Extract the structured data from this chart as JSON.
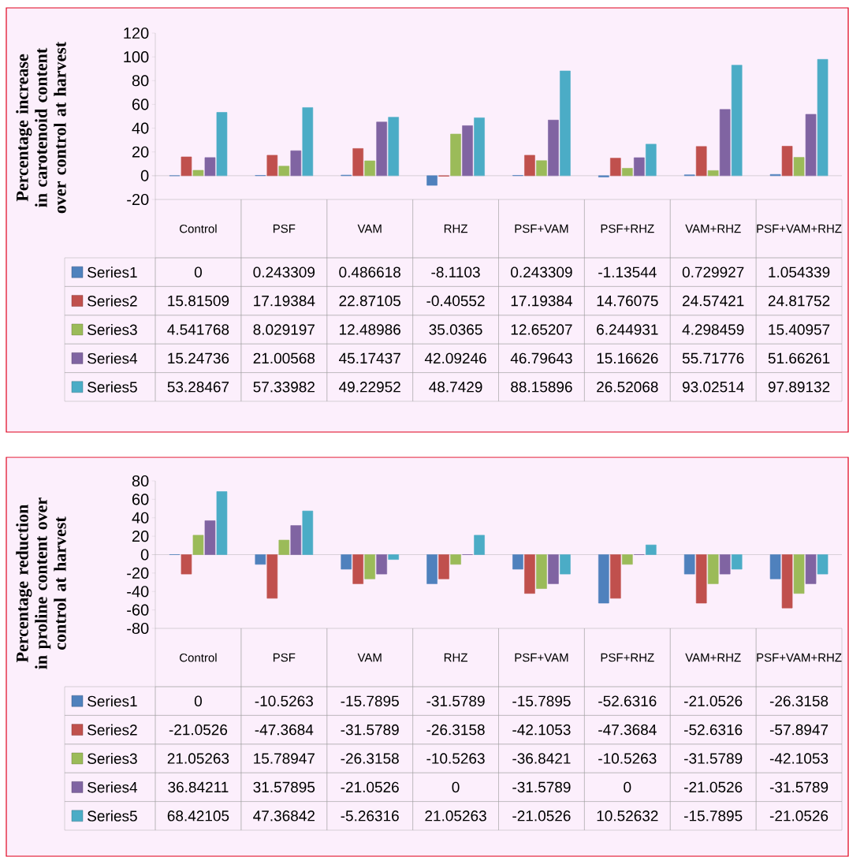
{
  "chart_data": [
    {
      "type": "bar",
      "ylabel": "Percentage increase in carotenoid content over control at harvest",
      "categories": [
        "Control",
        "PSF",
        "VAM",
        "RHZ",
        "PSF+VAM",
        "PSF+RHZ",
        "VAM+RHZ",
        "PSF+VAM+RHZ"
      ],
      "series": [
        {
          "name": "Series1",
          "color": "#4f81bd",
          "values": [
            0,
            0.243309,
            0.486618,
            -8.1103,
            0.243309,
            -1.13544,
            0.729927,
            1.054339
          ]
        },
        {
          "name": "Series2",
          "color": "#c0504d",
          "values": [
            15.81509,
            17.19384,
            22.87105,
            -0.40552,
            17.19384,
            14.76075,
            24.57421,
            24.81752
          ]
        },
        {
          "name": "Series3",
          "color": "#9bbb59",
          "values": [
            4.541768,
            8.029197,
            12.48986,
            35.0365,
            12.65207,
            6.244931,
            4.298459,
            15.40957
          ]
        },
        {
          "name": "Series4",
          "color": "#8064a2",
          "values": [
            15.24736,
            21.00568,
            45.17437,
            42.09246,
            46.79643,
            15.16626,
            55.71776,
            51.66261
          ]
        },
        {
          "name": "Series5",
          "color": "#4bacc6",
          "values": [
            53.28467,
            57.33982,
            49.22952,
            48.7429,
            88.15896,
            26.52068,
            93.02514,
            97.89132
          ]
        }
      ],
      "ylim": [
        -20,
        120
      ],
      "yticks": [
        -20,
        0,
        20,
        40,
        60,
        80,
        100,
        120
      ],
      "data_labels": true,
      "legend": "bottom left"
    },
    {
      "type": "bar",
      "ylabel": "Percentage reduction in proline content over control at harvest",
      "categories": [
        "Control",
        "PSF",
        "VAM",
        "RHZ",
        "PSF+VAM",
        "PSF+RHZ",
        "VAM+RHZ",
        "PSF+VAM+RHZ"
      ],
      "series": [
        {
          "name": "Series1",
          "color": "#4f81bd",
          "values": [
            0,
            -10.5263,
            -15.7895,
            -31.5789,
            -15.7895,
            -52.6316,
            -21.0526,
            -26.3158
          ]
        },
        {
          "name": "Series2",
          "color": "#c0504d",
          "values": [
            -21.0526,
            -47.3684,
            -31.5789,
            -26.3158,
            -42.1053,
            -47.3684,
            -52.6316,
            -57.8947
          ]
        },
        {
          "name": "Series3",
          "color": "#9bbb59",
          "values": [
            21.05263,
            15.78947,
            -26.3158,
            -10.5263,
            -36.8421,
            -10.5263,
            -31.5789,
            -42.1053
          ]
        },
        {
          "name": "Series4",
          "color": "#8064a2",
          "values": [
            36.84211,
            31.57895,
            -21.0526,
            0,
            -31.5789,
            0,
            -21.0526,
            -31.5789
          ]
        },
        {
          "name": "Series5",
          "color": "#4bacc6",
          "values": [
            68.42105,
            47.36842,
            -5.26316,
            21.05263,
            -21.0526,
            10.52632,
            -15.7895,
            -21.0526
          ]
        }
      ],
      "ylim": [
        -80,
        80
      ],
      "yticks": [
        -80,
        -60,
        -40,
        -20,
        0,
        20,
        40,
        60,
        80
      ],
      "data_labels": true,
      "legend": "bottom left"
    }
  ]
}
